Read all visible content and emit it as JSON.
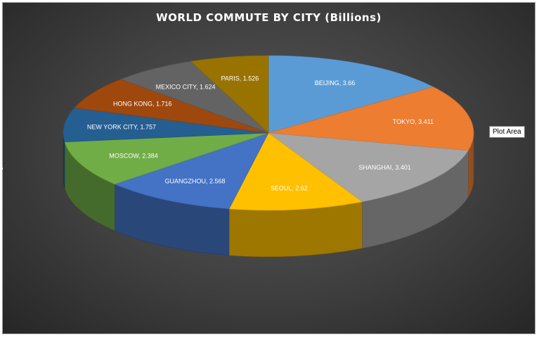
{
  "chart_data": {
    "type": "pie",
    "title": "WORLD COMMUTE BY CITY (Billions)",
    "categories": [
      "BEIJING",
      "TOKYO",
      "SHANGHAI",
      "SEOUL",
      "GUANGZHOU",
      "MOSCOW",
      "NEW YORK CITY",
      "HONG KONG",
      "MEXICO CITY",
      "PARIS"
    ],
    "values": [
      3.66,
      3.411,
      3.401,
      2.62,
      2.568,
      2.384,
      1.757,
      1.716,
      1.624,
      1.526
    ],
    "labels": [
      "BEIJING, 3.66",
      "TOKYO, 3.411",
      "SHANGHAI, 3.401",
      "SEOUL, 2.62",
      "GUANGZHOU, 2.568",
      "MOSCOW, 2.384",
      "NEW YORK CITY, 1.757",
      "HONG KONG, 1.716",
      "MEXICO CITY, 1.624",
      "PARIS, 1.526"
    ],
    "colors": [
      "#5b9bd5",
      "#ed7d31",
      "#a5a5a5",
      "#ffc000",
      "#4472c4",
      "#70ad47",
      "#255e91",
      "#9e480e",
      "#636363",
      "#997300"
    ],
    "style": "3d-pie"
  },
  "tooltip": {
    "text": "Plot Area"
  }
}
